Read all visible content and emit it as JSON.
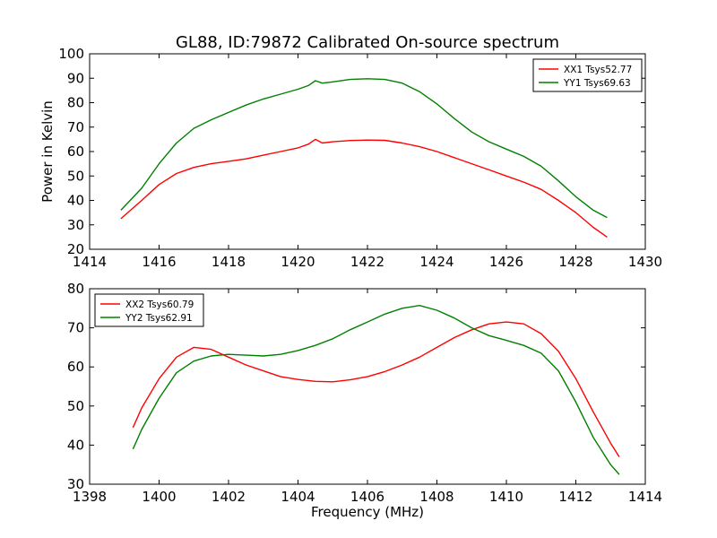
{
  "figure": {
    "title": "GL88, ID:79872 Calibrated On-source spectrum"
  },
  "colors": {
    "red": "#ff0000",
    "green": "#008000",
    "axes": "#000000",
    "background": "#ffffff"
  },
  "chart_data": [
    {
      "type": "line",
      "ylabel": "Power in Kelvin",
      "xlabel": "",
      "xlim": [
        1414,
        1430
      ],
      "ylim": [
        20,
        100
      ],
      "xticks": [
        1414,
        1416,
        1418,
        1420,
        1422,
        1424,
        1426,
        1428,
        1430
      ],
      "yticks": [
        20,
        30,
        40,
        50,
        60,
        70,
        80,
        90,
        100
      ],
      "grid": false,
      "legend_position": "top-right",
      "series": [
        {
          "name": "XX1 Tsys52.77",
          "color": "#ff0000",
          "x": [
            1414.9,
            1415.5,
            1416.0,
            1416.5,
            1417.0,
            1417.5,
            1418.0,
            1418.5,
            1419.0,
            1419.5,
            1420.0,
            1420.3,
            1420.5,
            1420.7,
            1421.0,
            1421.5,
            1422.0,
            1422.5,
            1423.0,
            1423.5,
            1424.0,
            1424.5,
            1425.0,
            1425.5,
            1426.0,
            1426.5,
            1427.0,
            1427.5,
            1428.0,
            1428.5,
            1428.9
          ],
          "y": [
            32.5,
            40,
            46.5,
            51,
            53.5,
            55,
            56,
            57,
            58.5,
            60,
            61.5,
            63,
            65,
            63.5,
            64,
            64.5,
            64.7,
            64.6,
            63.5,
            62,
            60,
            57.5,
            55,
            52.5,
            50,
            47.5,
            44.5,
            40,
            35,
            29,
            25
          ]
        },
        {
          "name": "YY1 Tsys69.63",
          "color": "#008000",
          "x": [
            1414.9,
            1415.5,
            1416.0,
            1416.5,
            1417.0,
            1417.5,
            1418.0,
            1418.5,
            1419.0,
            1419.5,
            1420.0,
            1420.3,
            1420.5,
            1420.7,
            1421.0,
            1421.5,
            1422.0,
            1422.5,
            1423.0,
            1423.5,
            1424.0,
            1424.5,
            1425.0,
            1425.5,
            1426.0,
            1426.5,
            1427.0,
            1427.5,
            1428.0,
            1428.5,
            1428.9
          ],
          "y": [
            36,
            45,
            55,
            63.5,
            69.5,
            73,
            76,
            79,
            81.5,
            83.5,
            85.5,
            87,
            89,
            88,
            88.5,
            89.5,
            89.8,
            89.5,
            88,
            84.5,
            79.5,
            73.5,
            68,
            64,
            61,
            58,
            54,
            48,
            41.5,
            36,
            33
          ]
        }
      ]
    },
    {
      "type": "line",
      "xlabel": "Frequency (MHz)",
      "ylabel": "",
      "xlim": [
        1398,
        1414
      ],
      "ylim": [
        30,
        80
      ],
      "xticks": [
        1398,
        1400,
        1402,
        1404,
        1406,
        1408,
        1410,
        1412,
        1414
      ],
      "yticks": [
        30,
        40,
        50,
        60,
        70,
        80
      ],
      "grid": false,
      "legend_position": "top-left",
      "series": [
        {
          "name": "XX2 Tsys60.79",
          "color": "#ff0000",
          "x": [
            1399.25,
            1399.5,
            1400.0,
            1400.5,
            1401.0,
            1401.5,
            1402.0,
            1402.5,
            1403.0,
            1403.5,
            1404.0,
            1404.5,
            1405.0,
            1405.5,
            1406.0,
            1406.5,
            1407.0,
            1407.5,
            1408.0,
            1408.5,
            1409.0,
            1409.5,
            1410.0,
            1410.5,
            1411.0,
            1411.5,
            1412.0,
            1412.5,
            1413.0,
            1413.25
          ],
          "y": [
            44.5,
            49.5,
            57,
            62.5,
            65,
            64.5,
            62.5,
            60.5,
            59,
            57.5,
            56.8,
            56.3,
            56.2,
            56.7,
            57.5,
            58.8,
            60.5,
            62.5,
            65,
            67.5,
            69.5,
            71,
            71.5,
            71,
            68.5,
            64,
            57,
            48.5,
            40.5,
            37
          ]
        },
        {
          "name": "YY2 Tsys62.91",
          "color": "#008000",
          "x": [
            1399.25,
            1399.5,
            1400.0,
            1400.5,
            1401.0,
            1401.5,
            1402.0,
            1402.5,
            1403.0,
            1403.5,
            1404.0,
            1404.5,
            1405.0,
            1405.5,
            1406.0,
            1406.5,
            1407.0,
            1407.5,
            1408.0,
            1408.5,
            1409.0,
            1409.5,
            1410.0,
            1410.5,
            1411.0,
            1411.5,
            1412.0,
            1412.5,
            1413.0,
            1413.25
          ],
          "y": [
            39,
            44,
            52,
            58.5,
            61.5,
            62.8,
            63.2,
            63,
            62.8,
            63.2,
            64.2,
            65.5,
            67.2,
            69.5,
            71.5,
            73.5,
            75,
            75.7,
            74.5,
            72.5,
            70,
            68,
            66.8,
            65.5,
            63.5,
            59,
            51,
            42,
            35,
            32.5
          ]
        }
      ]
    }
  ]
}
